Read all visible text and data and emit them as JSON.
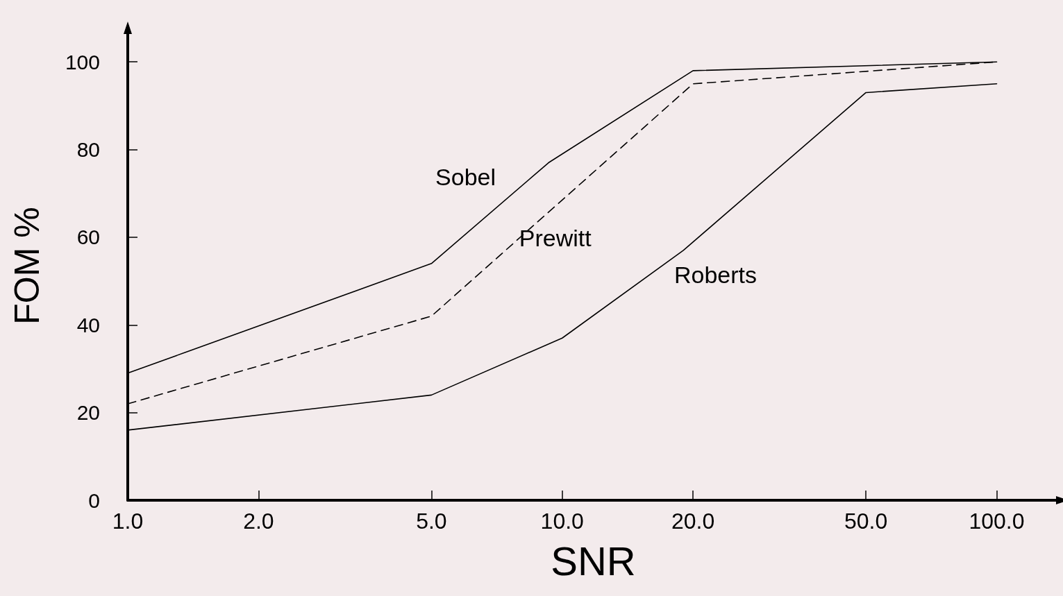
{
  "chart_data": {
    "type": "line",
    "xlabel": "SNR",
    "ylabel": "FOM %",
    "log": "x",
    "xlim": [
      1,
      139
    ],
    "xticks": [
      {
        "value": 1,
        "label": "1.0"
      },
      {
        "value": 2,
        "label": "2.0"
      },
      {
        "value": 5,
        "label": "5.0"
      },
      {
        "value": 10,
        "label": "10.0"
      },
      {
        "value": 20,
        "label": "20.0"
      },
      {
        "value": 50,
        "label": "50.0"
      },
      {
        "value": 100,
        "label": "100.0"
      }
    ],
    "ylim": [
      0,
      107
    ],
    "yticks": [
      0,
      20,
      40,
      60,
      80,
      100
    ],
    "grid": false,
    "legend": false,
    "marker": "none",
    "series": [
      {
        "name": "Sobel",
        "color": "#000000",
        "line_style": "solid",
        "x": [
          1,
          5,
          9.3,
          20,
          100
        ],
        "values": [
          29,
          54,
          77,
          98,
          100
        ]
      },
      {
        "name": "Prewitt",
        "color": "#000000",
        "line_style": "dashed",
        "x": [
          1,
          5,
          20,
          100
        ],
        "values": [
          22,
          42,
          95,
          100
        ]
      },
      {
        "name": "Roberts",
        "color": "#000000",
        "line_style": "solid",
        "x": [
          1,
          5,
          10,
          19,
          50,
          100
        ],
        "values": [
          16,
          24,
          37,
          57,
          93,
          95
        ]
      }
    ]
  }
}
